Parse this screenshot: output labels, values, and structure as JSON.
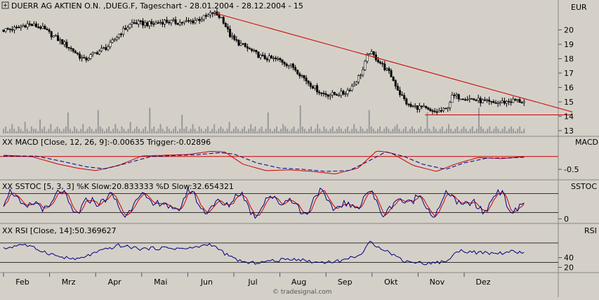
{
  "chart_data": [
    {
      "type": "candlestick",
      "title": "DUERR AG AKTIEN O.N. ,DUEG.F, Tageschart - 28.01.2004 - 28.12.2004 - 15",
      "currency_label": "EUR",
      "y_ticks": [
        "20",
        "19",
        "18",
        "17",
        "16",
        "15",
        "14",
        "13"
      ],
      "x_ticks": [
        "Feb",
        "Mrz",
        "Apr",
        "Mai",
        "Jun",
        "Jul",
        "Aug",
        "Sep",
        "Okt",
        "Nov",
        "Dez"
      ],
      "ylim": [
        13,
        21
      ],
      "price_key": [
        {
          "m": 0,
          "v": 20.0
        },
        {
          "m": 0.3,
          "v": 20.1
        },
        {
          "m": 0.5,
          "v": 20.4
        },
        {
          "m": 0.8,
          "v": 20.2
        },
        {
          "m": 1.2,
          "v": 19.3
        },
        {
          "m": 1.5,
          "v": 18.6
        },
        {
          "m": 1.75,
          "v": 17.9
        },
        {
          "m": 2.0,
          "v": 18.4
        },
        {
          "m": 2.3,
          "v": 18.9
        },
        {
          "m": 2.5,
          "v": 19.7
        },
        {
          "m": 2.8,
          "v": 20.5
        },
        {
          "m": 3.2,
          "v": 20.4
        },
        {
          "m": 3.5,
          "v": 20.6
        },
        {
          "m": 3.8,
          "v": 20.5
        },
        {
          "m": 4.1,
          "v": 20.6
        },
        {
          "m": 4.4,
          "v": 20.9
        },
        {
          "m": 4.55,
          "v": 21.2
        },
        {
          "m": 4.75,
          "v": 20.8
        },
        {
          "m": 4.9,
          "v": 19.7
        },
        {
          "m": 5.0,
          "v": 19.3
        },
        {
          "m": 5.3,
          "v": 18.7
        },
        {
          "m": 5.6,
          "v": 18.1
        },
        {
          "m": 6.0,
          "v": 17.9
        },
        {
          "m": 6.3,
          "v": 17.4
        },
        {
          "m": 6.6,
          "v": 16.4
        },
        {
          "m": 6.9,
          "v": 15.6
        },
        {
          "m": 7.1,
          "v": 15.5
        },
        {
          "m": 7.4,
          "v": 15.6
        },
        {
          "m": 7.6,
          "v": 16.2
        },
        {
          "m": 7.8,
          "v": 17.2
        },
        {
          "m": 7.93,
          "v": 18.5
        },
        {
          "m": 8.1,
          "v": 18.0
        },
        {
          "m": 8.4,
          "v": 16.9
        },
        {
          "m": 8.6,
          "v": 15.6
        },
        {
          "m": 8.8,
          "v": 14.7
        },
        {
          "m": 9.1,
          "v": 14.6
        },
        {
          "m": 9.3,
          "v": 14.25
        },
        {
          "m": 9.6,
          "v": 14.45
        },
        {
          "m": 9.75,
          "v": 15.4
        },
        {
          "m": 10.0,
          "v": 15.3
        },
        {
          "m": 10.3,
          "v": 15.1
        },
        {
          "m": 10.6,
          "v": 14.9
        },
        {
          "m": 10.9,
          "v": 15.0
        },
        {
          "m": 11.1,
          "v": 15.1
        },
        {
          "m": 11.3,
          "v": 15.0
        }
      ],
      "volume": [
        2,
        3,
        1,
        2,
        4,
        2,
        1,
        3,
        2,
        1,
        5,
        2,
        1,
        3,
        2,
        2,
        1,
        6,
        2,
        3,
        1,
        2,
        4,
        1,
        2,
        3,
        2,
        1,
        2,
        3,
        9,
        2,
        1,
        3,
        2,
        1,
        2,
        4,
        1,
        2,
        3,
        2,
        1,
        2,
        10,
        3,
        2,
        1,
        2,
        3,
        1,
        2,
        4,
        2,
        1,
        3,
        2,
        1,
        2,
        5,
        1,
        2,
        3,
        2,
        1,
        2,
        3,
        1,
        11,
        2,
        3,
        1,
        2,
        4,
        2,
        1,
        3,
        2,
        1,
        2,
        3,
        1,
        2,
        8,
        2,
        3,
        1,
        2,
        4,
        2,
        1,
        3,
        2,
        1,
        2,
        3,
        1,
        2,
        4,
        1,
        2,
        3,
        2,
        1,
        2,
        5,
        1,
        2,
        3,
        2,
        1,
        2,
        3,
        1,
        2,
        4,
        2,
        3,
        1,
        2,
        3,
        1,
        2,
        9,
        2,
        1,
        2,
        3,
        1,
        2,
        4,
        3,
        2,
        1,
        2,
        3,
        1,
        2,
        12,
        3,
        2,
        1,
        2,
        3,
        1,
        2,
        4,
        2,
        1,
        3,
        2,
        1,
        2,
        3,
        1,
        2,
        3,
        2,
        1,
        2,
        3,
        1,
        2,
        4,
        2,
        1,
        3,
        2,
        1,
        2,
        10,
        3,
        2,
        1,
        2,
        3,
        1,
        2,
        3,
        2,
        1,
        2,
        3,
        4,
        2,
        1,
        2,
        3,
        1,
        2,
        3,
        2,
        1,
        2,
        3,
        1,
        2,
        9,
        2,
        1,
        3,
        2,
        1,
        2,
        3,
        1,
        2,
        4,
        2,
        1,
        2,
        3,
        1,
        2,
        3,
        2,
        1,
        2,
        3,
        1,
        2,
        11,
        3,
        2,
        1,
        2,
        3,
        1,
        2,
        3,
        2,
        1,
        2,
        3,
        1,
        2,
        3,
        2,
        1,
        2,
        3,
        1,
        2
      ],
      "trendlines": [
        {
          "name": "resistance",
          "from": {
            "m": 4.55,
            "v": 21.2
          },
          "to": {
            "m": 12.35,
            "v": 14.3
          }
        },
        {
          "name": "support",
          "from": {
            "m": 9.15,
            "v": 14.1
          },
          "to": {
            "m": 12.35,
            "v": 14.1
          }
        }
      ]
    },
    {
      "type": "line",
      "label": "XX MACD [Close, 12, 26, 9]:-0.00635 Trigger:-0.02896",
      "axis_label": "MACD",
      "y_ticks": [
        "-0.5"
      ],
      "ylim": [
        -0.8,
        0.35
      ],
      "reference_value": 0,
      "macd_key": [
        {
          "m": 0,
          "v": 0.05
        },
        {
          "m": 0.6,
          "v": 0.0
        },
        {
          "m": 1.2,
          "v": -0.3
        },
        {
          "m": 1.6,
          "v": -0.45
        },
        {
          "m": 2.0,
          "v": -0.55
        },
        {
          "m": 2.5,
          "v": -0.35
        },
        {
          "m": 3.0,
          "v": 0.02
        },
        {
          "m": 3.5,
          "v": 0.05
        },
        {
          "m": 4.0,
          "v": 0.08
        },
        {
          "m": 4.5,
          "v": 0.2
        },
        {
          "m": 4.8,
          "v": 0.18
        },
        {
          "m": 5.2,
          "v": -0.3
        },
        {
          "m": 5.7,
          "v": -0.55
        },
        {
          "m": 6.2,
          "v": -0.52
        },
        {
          "m": 6.7,
          "v": -0.58
        },
        {
          "m": 7.2,
          "v": -0.68
        },
        {
          "m": 7.7,
          "v": -0.45
        },
        {
          "m": 8.1,
          "v": 0.22
        },
        {
          "m": 8.4,
          "v": 0.15
        },
        {
          "m": 8.9,
          "v": -0.35
        },
        {
          "m": 9.4,
          "v": -0.58
        },
        {
          "m": 9.8,
          "v": -0.3
        },
        {
          "m": 10.3,
          "v": -0.04
        },
        {
          "m": 10.8,
          "v": -0.08
        },
        {
          "m": 11.3,
          "v": -0.01
        }
      ],
      "trigger_key": [
        {
          "m": 0,
          "v": 0.02
        },
        {
          "m": 0.7,
          "v": 0.02
        },
        {
          "m": 1.3,
          "v": -0.2
        },
        {
          "m": 1.8,
          "v": -0.4
        },
        {
          "m": 2.2,
          "v": -0.48
        },
        {
          "m": 2.7,
          "v": -0.25
        },
        {
          "m": 3.2,
          "v": 0.0
        },
        {
          "m": 3.7,
          "v": 0.04
        },
        {
          "m": 4.2,
          "v": 0.07
        },
        {
          "m": 4.7,
          "v": 0.15
        },
        {
          "m": 5.0,
          "v": 0.1
        },
        {
          "m": 5.5,
          "v": -0.25
        },
        {
          "m": 6.0,
          "v": -0.45
        },
        {
          "m": 6.5,
          "v": -0.5
        },
        {
          "m": 7.0,
          "v": -0.58
        },
        {
          "m": 7.5,
          "v": -0.55
        },
        {
          "m": 7.9,
          "v": -0.2
        },
        {
          "m": 8.3,
          "v": 0.18
        },
        {
          "m": 8.7,
          "v": 0.0
        },
        {
          "m": 9.1,
          "v": -0.3
        },
        {
          "m": 9.6,
          "v": -0.5
        },
        {
          "m": 10.0,
          "v": -0.25
        },
        {
          "m": 10.5,
          "v": -0.06
        },
        {
          "m": 10.9,
          "v": -0.06
        },
        {
          "m": 11.3,
          "v": -0.03
        }
      ]
    },
    {
      "type": "line",
      "label": "XX SSTOC [5, 3, 3] %K Slow:20.833333 %D Slow:32.654321",
      "axis_label": "SSTOC",
      "y_ticks": [
        "0"
      ],
      "ylim": [
        -10,
        110
      ],
      "reference_values": [
        80,
        20
      ]
    },
    {
      "type": "line",
      "label": "XX RSI [Close, 14]:50.369627",
      "axis_label": "RSI",
      "y_ticks": [
        "40",
        "20"
      ],
      "ylim": [
        15,
        90
      ],
      "reference_values": [
        70,
        30
      ],
      "rsi_key": [
        {
          "m": 0,
          "v": 58
        },
        {
          "m": 0.4,
          "v": 68
        },
        {
          "m": 0.8,
          "v": 55
        },
        {
          "m": 1.2,
          "v": 42
        },
        {
          "m": 1.6,
          "v": 36
        },
        {
          "m": 2.0,
          "v": 50
        },
        {
          "m": 2.5,
          "v": 65
        },
        {
          "m": 3.0,
          "v": 58
        },
        {
          "m": 3.5,
          "v": 60
        },
        {
          "m": 4.0,
          "v": 58
        },
        {
          "m": 4.5,
          "v": 68
        },
        {
          "m": 4.9,
          "v": 42
        },
        {
          "m": 5.3,
          "v": 28
        },
        {
          "m": 5.8,
          "v": 33
        },
        {
          "m": 6.3,
          "v": 38
        },
        {
          "m": 6.8,
          "v": 30
        },
        {
          "m": 7.3,
          "v": 33
        },
        {
          "m": 7.8,
          "v": 48
        },
        {
          "m": 7.95,
          "v": 72
        },
        {
          "m": 8.3,
          "v": 55
        },
        {
          "m": 8.7,
          "v": 33
        },
        {
          "m": 9.2,
          "v": 28
        },
        {
          "m": 9.6,
          "v": 32
        },
        {
          "m": 9.9,
          "v": 55
        },
        {
          "m": 10.3,
          "v": 50
        },
        {
          "m": 10.7,
          "v": 48
        },
        {
          "m": 11.0,
          "v": 52
        },
        {
          "m": 11.3,
          "v": 50
        }
      ]
    }
  ],
  "watermark": "© tradesignal.com"
}
